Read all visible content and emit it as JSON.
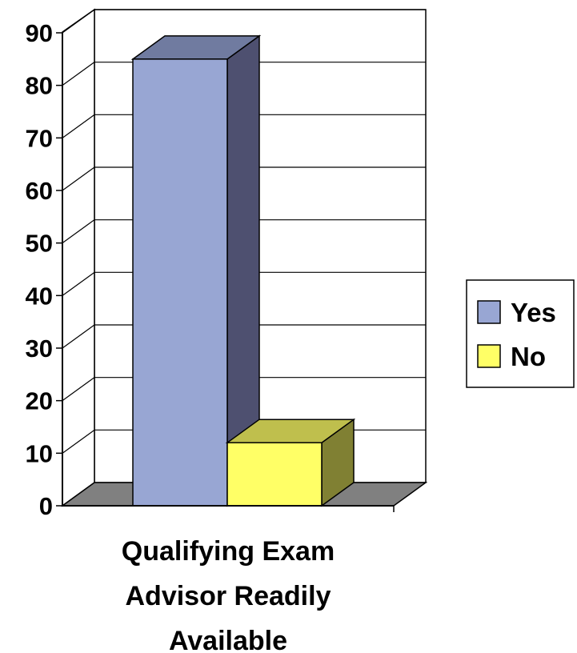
{
  "chart_data": {
    "type": "bar",
    "categories": [
      "Qualifying Exam Advisor Readily Available"
    ],
    "xlabel_lines": [
      "Qualifying Exam",
      "Advisor Readily",
      "Available"
    ],
    "series": [
      {
        "name": "Yes",
        "values": [
          85
        ],
        "color": "#98A6D3",
        "side_color": "#4E5070",
        "top_color": "#707BA0"
      },
      {
        "name": "No",
        "values": [
          12
        ],
        "color": "#FFFF66",
        "side_color": "#808033",
        "top_color": "#BFBF4D"
      }
    ],
    "ylim": [
      0,
      90
    ],
    "yticks": [
      0,
      10,
      20,
      30,
      40,
      50,
      60,
      70,
      80,
      90
    ],
    "grid": true,
    "legend_position": "right",
    "style": "3d-column"
  }
}
